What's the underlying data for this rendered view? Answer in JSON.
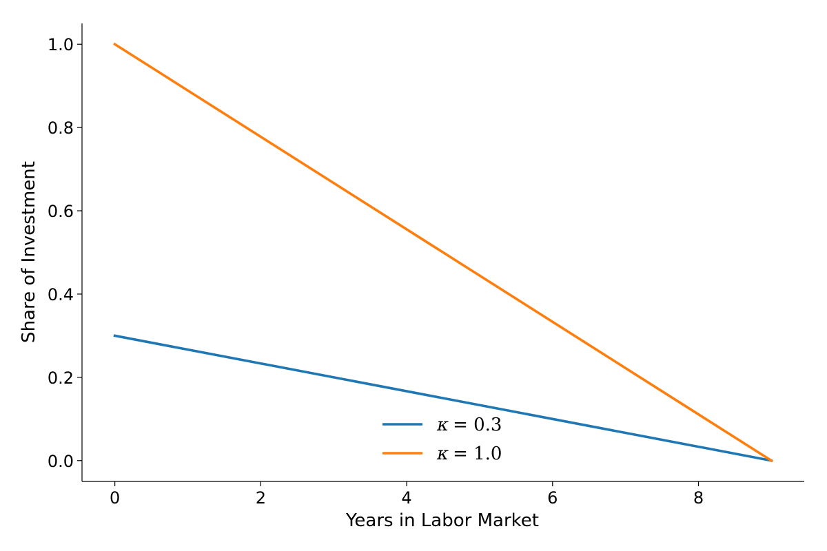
{
  "chart_data": {
    "type": "line",
    "xlabel": "Years in Labor Market",
    "ylabel": "Share of Investment",
    "xlim": [
      -0.45,
      9.45
    ],
    "ylim": [
      -0.05,
      1.05
    ],
    "xticks": [
      0,
      2,
      4,
      6,
      8
    ],
    "xtick_labels": [
      "0",
      "2",
      "4",
      "6",
      "8"
    ],
    "yticks": [
      0.0,
      0.2,
      0.4,
      0.6,
      0.8,
      1.0
    ],
    "ytick_labels": [
      "0.0",
      "0.2",
      "0.4",
      "0.6",
      "0.8",
      "1.0"
    ],
    "grid": false,
    "legend_position": "bottom-center",
    "series": [
      {
        "name": "κ = 0.3",
        "symbol": "κ",
        "value_text": "= 0.3",
        "color": "#1f77b4",
        "x": [
          0,
          9
        ],
        "y": [
          0.3,
          0.0
        ]
      },
      {
        "name": "κ = 1.0",
        "symbol": "κ",
        "value_text": "= 1.0",
        "color": "#ff7f0e",
        "x": [
          0,
          9
        ],
        "y": [
          1.0,
          0.0
        ]
      }
    ]
  }
}
